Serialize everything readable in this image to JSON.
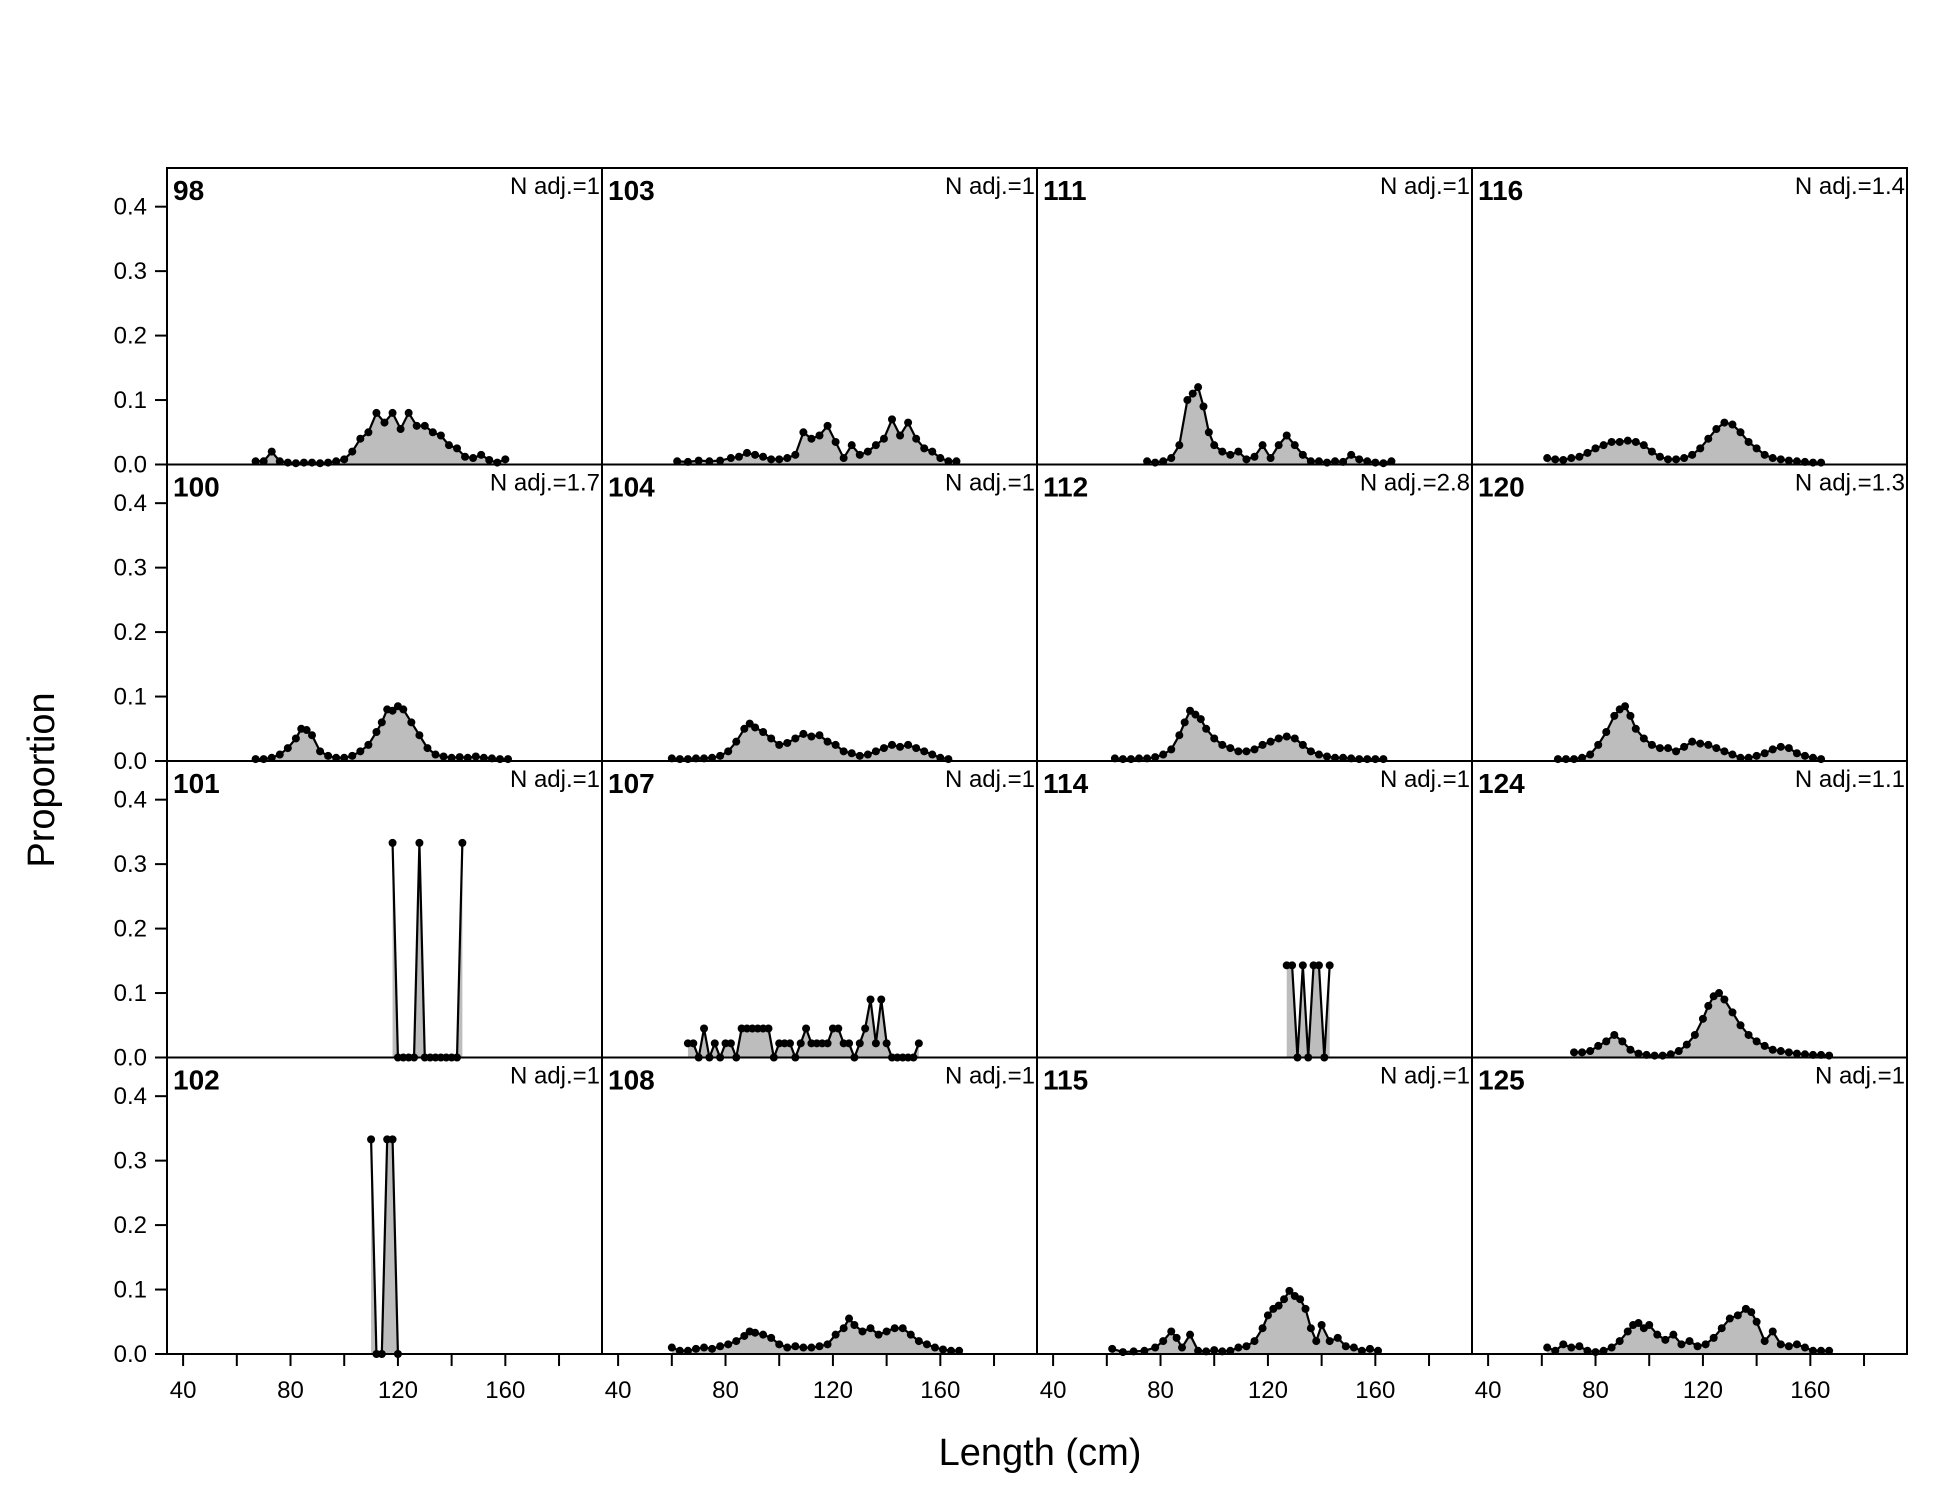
{
  "chart_data": {
    "type": "area",
    "xlabel": "Length (cm)",
    "ylabel": "Proportion",
    "xlim": [
      34,
      196
    ],
    "ylim": [
      0,
      0.46
    ],
    "x_ticks": [
      40,
      60,
      80,
      100,
      120,
      140,
      160,
      180
    ],
    "x_tick_labels": [
      "40",
      "80",
      "120",
      "160"
    ],
    "y_ticks": [
      0.0,
      0.1,
      0.2,
      0.3,
      0.4
    ],
    "y_tick_labels": [
      "0.0",
      "0.1",
      "0.2",
      "0.3",
      "0.4"
    ],
    "grid": false,
    "fill_color": "#bdbdbd",
    "line_color": "#000000",
    "panels": [
      {
        "label": "98",
        "nadj": "N adj.=1",
        "row": 0,
        "col": 0,
        "x": [
          67,
          70,
          73,
          76,
          79,
          82,
          85,
          88,
          91,
          94,
          97,
          100,
          103,
          106,
          109,
          112,
          115,
          118,
          121,
          124,
          127,
          130,
          133,
          136,
          139,
          142,
          145,
          148,
          151,
          154,
          157,
          160
        ],
        "y": [
          0.005,
          0.005,
          0.02,
          0.005,
          0.003,
          0.002,
          0.003,
          0.003,
          0.002,
          0.003,
          0.005,
          0.008,
          0.02,
          0.04,
          0.05,
          0.08,
          0.065,
          0.08,
          0.055,
          0.08,
          0.06,
          0.06,
          0.05,
          0.045,
          0.03,
          0.025,
          0.012,
          0.01,
          0.015,
          0.007,
          0.003,
          0.008
        ]
      },
      {
        "label": "103",
        "nadj": "N adj.=1",
        "row": 0,
        "col": 1,
        "x": [
          62,
          66,
          70,
          74,
          78,
          82,
          85,
          88,
          91,
          94,
          97,
          100,
          103,
          106,
          109,
          112,
          115,
          118,
          121,
          124,
          127,
          130,
          133,
          136,
          139,
          142,
          145,
          148,
          151,
          154,
          157,
          160,
          163,
          166
        ],
        "y": [
          0.005,
          0.004,
          0.006,
          0.005,
          0.006,
          0.01,
          0.012,
          0.018,
          0.015,
          0.012,
          0.008,
          0.008,
          0.01,
          0.015,
          0.05,
          0.04,
          0.045,
          0.06,
          0.035,
          0.01,
          0.03,
          0.015,
          0.02,
          0.03,
          0.04,
          0.07,
          0.045,
          0.065,
          0.04,
          0.025,
          0.02,
          0.01,
          0.005,
          0.005
        ]
      },
      {
        "label": "111",
        "nadj": "N adj.=1",
        "row": 0,
        "col": 2,
        "x": [
          75,
          78,
          81,
          84,
          87,
          90,
          92,
          94,
          96,
          98,
          100,
          103,
          106,
          109,
          112,
          115,
          118,
          121,
          124,
          127,
          130,
          133,
          136,
          139,
          142,
          145,
          148,
          151,
          154,
          157,
          160,
          163,
          166
        ],
        "y": [
          0.005,
          0.003,
          0.005,
          0.01,
          0.03,
          0.1,
          0.11,
          0.12,
          0.09,
          0.05,
          0.03,
          0.02,
          0.015,
          0.02,
          0.008,
          0.012,
          0.03,
          0.01,
          0.03,
          0.045,
          0.03,
          0.015,
          0.005,
          0.005,
          0.003,
          0.005,
          0.004,
          0.015,
          0.008,
          0.005,
          0.003,
          0.002,
          0.005
        ]
      },
      {
        "label": "116",
        "nadj": "N adj.=1.4",
        "row": 0,
        "col": 3,
        "x": [
          62,
          65,
          68,
          71,
          74,
          77,
          80,
          83,
          86,
          89,
          92,
          95,
          98,
          101,
          104,
          107,
          110,
          113,
          116,
          119,
          122,
          125,
          128,
          131,
          134,
          137,
          140,
          143,
          146,
          149,
          152,
          155,
          158,
          161,
          164
        ],
        "y": [
          0.01,
          0.008,
          0.007,
          0.01,
          0.012,
          0.018,
          0.025,
          0.03,
          0.035,
          0.035,
          0.037,
          0.035,
          0.03,
          0.02,
          0.012,
          0.008,
          0.008,
          0.01,
          0.015,
          0.025,
          0.04,
          0.055,
          0.065,
          0.062,
          0.05,
          0.035,
          0.025,
          0.015,
          0.01,
          0.008,
          0.006,
          0.005,
          0.004,
          0.003,
          0.003
        ]
      },
      {
        "label": "100",
        "nadj": "N adj.=1.7",
        "row": 1,
        "col": 0,
        "x": [
          67,
          70,
          73,
          76,
          79,
          82,
          84,
          86,
          88,
          91,
          94,
          97,
          100,
          103,
          106,
          109,
          112,
          114,
          116,
          118,
          120,
          122,
          125,
          128,
          131,
          134,
          137,
          140,
          143,
          146,
          149,
          152,
          155,
          158,
          161
        ],
        "y": [
          0.003,
          0.003,
          0.005,
          0.01,
          0.02,
          0.035,
          0.05,
          0.048,
          0.04,
          0.015,
          0.008,
          0.005,
          0.005,
          0.008,
          0.015,
          0.025,
          0.045,
          0.06,
          0.08,
          0.078,
          0.085,
          0.08,
          0.06,
          0.04,
          0.02,
          0.01,
          0.007,
          0.005,
          0.006,
          0.005,
          0.007,
          0.005,
          0.004,
          0.003,
          0.003
        ]
      },
      {
        "label": "104",
        "nadj": "N adj.=1",
        "row": 1,
        "col": 1,
        "x": [
          60,
          63,
          66,
          69,
          72,
          75,
          78,
          81,
          84,
          87,
          89,
          91,
          94,
          97,
          100,
          103,
          106,
          109,
          112,
          115,
          118,
          121,
          124,
          127,
          130,
          133,
          136,
          139,
          142,
          145,
          148,
          151,
          154,
          157,
          160,
          163
        ],
        "y": [
          0.004,
          0.003,
          0.003,
          0.004,
          0.004,
          0.005,
          0.008,
          0.015,
          0.03,
          0.05,
          0.058,
          0.052,
          0.045,
          0.035,
          0.025,
          0.028,
          0.035,
          0.042,
          0.038,
          0.04,
          0.03,
          0.025,
          0.015,
          0.012,
          0.008,
          0.01,
          0.015,
          0.02,
          0.025,
          0.022,
          0.025,
          0.02,
          0.015,
          0.01,
          0.005,
          0.003
        ]
      },
      {
        "label": "112",
        "nadj": "N adj.=2.8",
        "row": 1,
        "col": 2,
        "x": [
          63,
          66,
          69,
          72,
          75,
          78,
          81,
          84,
          87,
          89,
          91,
          93,
          95,
          97,
          100,
          103,
          106,
          109,
          112,
          115,
          118,
          121,
          124,
          127,
          130,
          133,
          136,
          139,
          142,
          145,
          148,
          151,
          154,
          157,
          160,
          163
        ],
        "y": [
          0.004,
          0.003,
          0.003,
          0.004,
          0.004,
          0.006,
          0.01,
          0.018,
          0.04,
          0.06,
          0.078,
          0.072,
          0.065,
          0.05,
          0.035,
          0.025,
          0.02,
          0.015,
          0.015,
          0.018,
          0.025,
          0.03,
          0.035,
          0.038,
          0.035,
          0.025,
          0.015,
          0.01,
          0.007,
          0.005,
          0.005,
          0.004,
          0.003,
          0.003,
          0.003,
          0.003
        ]
      },
      {
        "label": "120",
        "nadj": "N adj.=1.3",
        "row": 1,
        "col": 3,
        "x": [
          66,
          69,
          72,
          75,
          78,
          81,
          84,
          87,
          89,
          91,
          93,
          95,
          98,
          101,
          104,
          107,
          110,
          113,
          116,
          119,
          122,
          125,
          128,
          131,
          134,
          137,
          140,
          143,
          146,
          149,
          152,
          155,
          158,
          161,
          164
        ],
        "y": [
          0.003,
          0.003,
          0.003,
          0.005,
          0.01,
          0.025,
          0.045,
          0.07,
          0.08,
          0.085,
          0.07,
          0.05,
          0.035,
          0.025,
          0.02,
          0.02,
          0.015,
          0.022,
          0.03,
          0.027,
          0.025,
          0.02,
          0.015,
          0.01,
          0.005,
          0.005,
          0.008,
          0.012,
          0.018,
          0.022,
          0.02,
          0.012,
          0.008,
          0.005,
          0.003
        ]
      },
      {
        "label": "101",
        "nadj": "N adj.=1",
        "row": 2,
        "col": 0,
        "x": [
          118,
          120,
          122,
          124,
          126,
          128,
          130,
          132,
          134,
          136,
          138,
          140,
          142,
          144
        ],
        "y": [
          0.333,
          0,
          0,
          0,
          0,
          0.333,
          0,
          0,
          0,
          0,
          0,
          0,
          0,
          0.333
        ]
      },
      {
        "label": "107",
        "nadj": "N adj.=1",
        "row": 2,
        "col": 1,
        "x": [
          66,
          68,
          70,
          72,
          74,
          76,
          78,
          80,
          82,
          84,
          86,
          88,
          90,
          92,
          94,
          96,
          98,
          100,
          102,
          104,
          106,
          108,
          110,
          112,
          114,
          116,
          118,
          120,
          122,
          124,
          126,
          128,
          130,
          132,
          134,
          136,
          138,
          140,
          142,
          144,
          146,
          148,
          150,
          152
        ],
        "y": [
          0.022,
          0.022,
          0,
          0.045,
          0,
          0.022,
          0,
          0.022,
          0.022,
          0,
          0.045,
          0.045,
          0.045,
          0.045,
          0.045,
          0.045,
          0,
          0.022,
          0.022,
          0.022,
          0,
          0.022,
          0.045,
          0.022,
          0.022,
          0.022,
          0.022,
          0.045,
          0.045,
          0.022,
          0.022,
          0,
          0.022,
          0.045,
          0.09,
          0.022,
          0.09,
          0.022,
          0,
          0,
          0,
          0,
          0,
          0.022
        ]
      },
      {
        "label": "114",
        "nadj": "N adj.=1",
        "row": 2,
        "col": 2,
        "x": [
          127,
          129,
          131,
          133,
          135,
          137,
          139,
          141,
          143
        ],
        "y": [
          0.143,
          0.143,
          0,
          0.143,
          0,
          0.143,
          0.143,
          0,
          0.143
        ]
      },
      {
        "label": "124",
        "nadj": "N adj.=1.1",
        "row": 2,
        "col": 3,
        "x": [
          72,
          75,
          78,
          81,
          84,
          87,
          90,
          93,
          96,
          99,
          102,
          105,
          108,
          111,
          114,
          117,
          120,
          122,
          124,
          126,
          128,
          131,
          134,
          137,
          140,
          143,
          146,
          149,
          152,
          155,
          158,
          161,
          164,
          167
        ],
        "y": [
          0.008,
          0.008,
          0.01,
          0.018,
          0.025,
          0.035,
          0.025,
          0.012,
          0.006,
          0.004,
          0.003,
          0.003,
          0.005,
          0.01,
          0.02,
          0.035,
          0.06,
          0.08,
          0.095,
          0.1,
          0.09,
          0.07,
          0.05,
          0.035,
          0.025,
          0.018,
          0.012,
          0.01,
          0.008,
          0.006,
          0.005,
          0.004,
          0.004,
          0.003
        ]
      },
      {
        "label": "102",
        "nadj": "N adj.=1",
        "row": 3,
        "col": 0,
        "x": [
          110,
          112,
          114,
          116,
          118,
          120
        ],
        "y": [
          0.333,
          0,
          0,
          0.333,
          0.333,
          0
        ]
      },
      {
        "label": "108",
        "nadj": "N adj.=1",
        "row": 3,
        "col": 1,
        "x": [
          60,
          63,
          66,
          69,
          72,
          75,
          78,
          81,
          84,
          87,
          89,
          91,
          94,
          97,
          100,
          103,
          106,
          109,
          112,
          115,
          118,
          121,
          124,
          126,
          128,
          131,
          134,
          137,
          140,
          143,
          146,
          149,
          152,
          155,
          158,
          161,
          164,
          167
        ],
        "y": [
          0.01,
          0.005,
          0.005,
          0.008,
          0.01,
          0.008,
          0.012,
          0.015,
          0.02,
          0.028,
          0.035,
          0.033,
          0.03,
          0.025,
          0.015,
          0.01,
          0.012,
          0.01,
          0.01,
          0.012,
          0.015,
          0.03,
          0.04,
          0.055,
          0.045,
          0.035,
          0.04,
          0.03,
          0.035,
          0.04,
          0.04,
          0.03,
          0.02,
          0.015,
          0.01,
          0.007,
          0.005,
          0.005
        ]
      },
      {
        "label": "115",
        "nadj": "N adj.=1",
        "row": 3,
        "col": 2,
        "x": [
          62,
          66,
          70,
          74,
          78,
          81,
          84,
          86,
          88,
          91,
          94,
          97,
          100,
          103,
          106,
          109,
          112,
          115,
          118,
          120,
          122,
          124,
          126,
          128,
          130,
          132,
          134,
          136,
          138,
          140,
          143,
          146,
          149,
          152,
          155,
          158,
          161
        ],
        "y": [
          0.008,
          0.003,
          0.004,
          0.005,
          0.01,
          0.02,
          0.035,
          0.025,
          0.01,
          0.03,
          0.005,
          0.004,
          0.006,
          0.004,
          0.005,
          0.01,
          0.012,
          0.02,
          0.04,
          0.06,
          0.07,
          0.075,
          0.085,
          0.098,
          0.09,
          0.085,
          0.07,
          0.04,
          0.02,
          0.045,
          0.02,
          0.025,
          0.012,
          0.01,
          0.005,
          0.008,
          0.005
        ]
      },
      {
        "label": "125",
        "nadj": "N adj.=1",
        "row": 3,
        "col": 3,
        "x": [
          62,
          65,
          68,
          71,
          74,
          77,
          80,
          83,
          86,
          89,
          92,
          94,
          96,
          98,
          100,
          103,
          106,
          109,
          112,
          115,
          118,
          121,
          124,
          127,
          130,
          133,
          136,
          138,
          140,
          143,
          146,
          149,
          152,
          155,
          158,
          161,
          164,
          167
        ],
        "y": [
          0.01,
          0.005,
          0.015,
          0.01,
          0.012,
          0.005,
          0.003,
          0.005,
          0.01,
          0.02,
          0.035,
          0.045,
          0.048,
          0.04,
          0.045,
          0.03,
          0.022,
          0.03,
          0.015,
          0.02,
          0.012,
          0.015,
          0.025,
          0.04,
          0.055,
          0.06,
          0.07,
          0.065,
          0.05,
          0.02,
          0.035,
          0.015,
          0.012,
          0.015,
          0.01,
          0.005,
          0.005,
          0.005
        ]
      }
    ]
  }
}
